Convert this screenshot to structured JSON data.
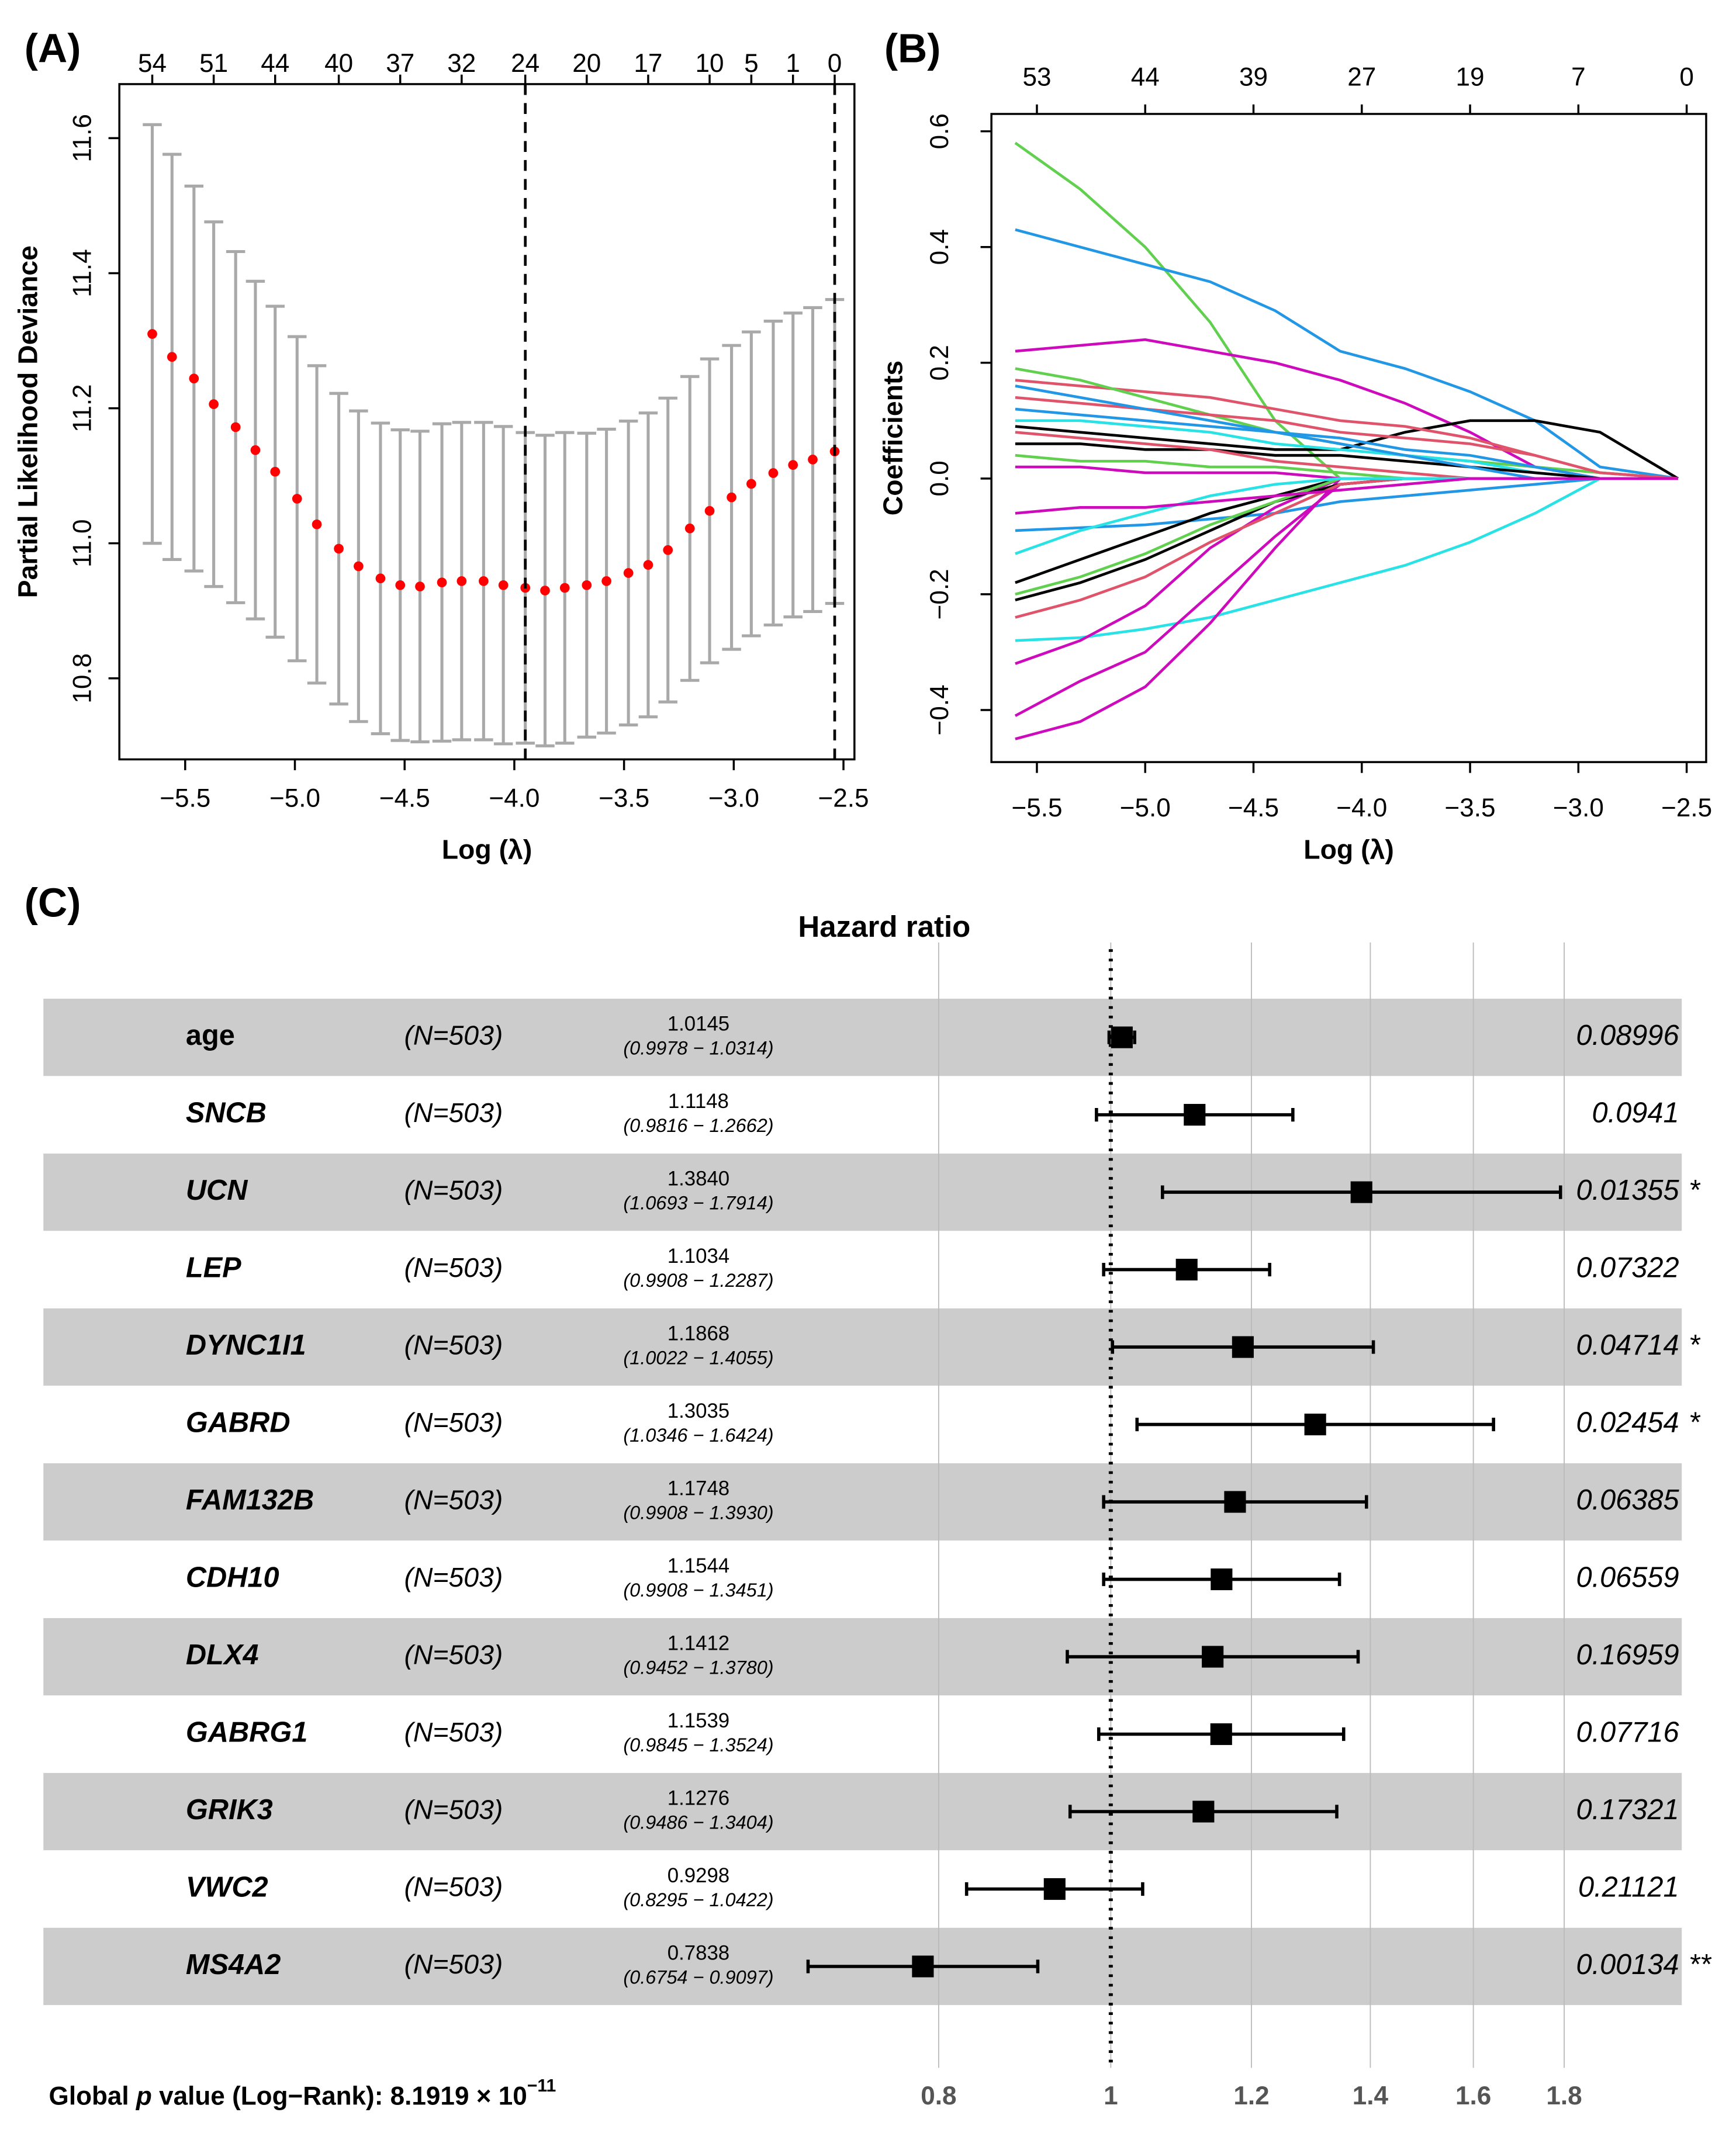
{
  "chart_data": [
    {
      "type": "errorbar",
      "panel_label": "(A)",
      "x_label": "Log (λ)",
      "y_label": "Partial Likelihood Deviance",
      "x": [
        -5.65,
        -5.56,
        -5.46,
        -5.37,
        -5.27,
        -5.18,
        -5.09,
        -4.99,
        -4.9,
        -4.8,
        -4.71,
        -4.61,
        -4.52,
        -4.43,
        -4.33,
        -4.24,
        -4.14,
        -4.05,
        -3.95,
        -3.86,
        -3.77,
        -3.67,
        -3.58,
        -3.48,
        -3.39,
        -3.3,
        -3.2,
        -3.11,
        -3.01,
        -2.92,
        -2.82,
        -2.73,
        -2.64,
        -2.54
      ],
      "values": [
        11.31,
        11.276,
        11.244,
        11.206,
        11.172,
        11.138,
        11.106,
        11.066,
        11.028,
        10.992,
        10.966,
        10.948,
        10.938,
        10.936,
        10.942,
        10.944,
        10.944,
        10.938,
        10.934,
        10.93,
        10.934,
        10.938,
        10.944,
        10.956,
        10.968,
        10.99,
        11.022,
        11.048,
        11.068,
        11.088,
        11.104,
        11.116,
        11.124,
        11.136
      ],
      "errors": [
        0.31,
        0.3,
        0.285,
        0.27,
        0.26,
        0.25,
        0.245,
        0.24,
        0.235,
        0.23,
        0.23,
        0.23,
        0.23,
        0.23,
        0.235,
        0.235,
        0.235,
        0.235,
        0.23,
        0.23,
        0.23,
        0.225,
        0.225,
        0.225,
        0.225,
        0.225,
        0.225,
        0.225,
        0.225,
        0.225,
        0.225,
        0.225,
        0.225,
        0.225
      ],
      "color": "#ff0000",
      "error_color": "#a9a9a9",
      "xlim": [
        -5.8,
        -2.45
      ],
      "ylim": [
        10.68,
        11.68
      ],
      "xticks": [
        {
          "value": -5.5,
          "label": "−5.5"
        },
        {
          "value": -5.0,
          "label": "−5.0"
        },
        {
          "value": -4.5,
          "label": "−4.5"
        },
        {
          "value": -4.0,
          "label": "−4.0"
        },
        {
          "value": -3.5,
          "label": "−3.5"
        },
        {
          "value": -3.0,
          "label": "−3.0"
        },
        {
          "value": -2.5,
          "label": "−2.5"
        }
      ],
      "yticks": [
        10.8,
        {
          "value": 11.0,
          "label": "11.0"
        },
        11.2,
        11.4,
        11.6
      ],
      "x2ticks": [
        {
          "value": -5.65,
          "label": "54"
        },
        {
          "value": -5.37,
          "label": "51"
        },
        {
          "value": -5.09,
          "label": "44"
        },
        {
          "value": -4.8,
          "label": "40"
        },
        {
          "value": -4.52,
          "label": "37"
        },
        {
          "value": -4.24,
          "label": "32"
        },
        {
          "value": -3.95,
          "label": "24"
        },
        {
          "value": -3.67,
          "label": "20"
        },
        {
          "value": -3.39,
          "label": "17"
        },
        {
          "value": -3.11,
          "label": "10"
        },
        {
          "value": -2.92,
          "label": "5"
        },
        {
          "value": -2.73,
          "label": "1"
        },
        {
          "value": -2.54,
          "label": "0"
        }
      ],
      "vlines": [
        -3.95,
        -2.54
      ]
    },
    {
      "type": "line",
      "panel_label": "(B)",
      "x_label": "Log (λ)",
      "y_label": "Coefficients",
      "x": [
        -5.6,
        -5.3,
        -5.0,
        -4.7,
        -4.4,
        -4.1,
        -3.8,
        -3.5,
        -3.2,
        -2.9,
        -2.54
      ],
      "series": [
        {
          "color": "#61D04F",
          "values": [
            0.58,
            0.5,
            0.4,
            0.27,
            0.1,
            0,
            0,
            0,
            0,
            0,
            0
          ]
        },
        {
          "color": "#2297E6",
          "values": [
            0.43,
            0.4,
            0.37,
            0.34,
            0.29,
            0.22,
            0.19,
            0.15,
            0.1,
            0.02,
            0
          ]
        },
        {
          "color": "#CD0BBC",
          "values": [
            0.22,
            0.23,
            0.24,
            0.22,
            0.2,
            0.17,
            0.13,
            0.08,
            0.02,
            0,
            0
          ]
        },
        {
          "color": "#000000",
          "values": [
            0.09,
            0.08,
            0.07,
            0.06,
            0.05,
            0.05,
            0.08,
            0.1,
            0.1,
            0.08,
            0
          ]
        },
        {
          "color": "#DF536B",
          "values": [
            0.17,
            0.16,
            0.15,
            0.14,
            0.12,
            0.1,
            0.09,
            0.07,
            0.04,
            0.01,
            0
          ]
        },
        {
          "color": "#61D04F",
          "values": [
            0.19,
            0.17,
            0.14,
            0.11,
            0.08,
            0.06,
            0.04,
            0.03,
            0.02,
            0.01,
            0
          ]
        },
        {
          "color": "#DF536B",
          "values": [
            0.14,
            0.13,
            0.12,
            0.11,
            0.1,
            0.08,
            0.07,
            0.06,
            0.04,
            0.01,
            0
          ]
        },
        {
          "color": "#2297E6",
          "values": [
            0.12,
            0.11,
            0.1,
            0.09,
            0.08,
            0.07,
            0.05,
            0.04,
            0.02,
            0,
            0
          ]
        },
        {
          "color": "#28E2E5",
          "values": [
            0.1,
            0.1,
            0.09,
            0.08,
            0.06,
            0.05,
            0.04,
            0.03,
            0.01,
            0,
            0
          ]
        },
        {
          "color": "#000000",
          "values": [
            0.06,
            0.06,
            0.05,
            0.05,
            0.04,
            0.04,
            0.03,
            0.02,
            0.01,
            0,
            0
          ]
        },
        {
          "color": "#61D04F",
          "values": [
            0.04,
            0.03,
            0.03,
            0.02,
            0.02,
            0.01,
            0,
            0,
            0,
            0,
            0
          ]
        },
        {
          "color": "#DF536B",
          "values": [
            0.08,
            0.07,
            0.06,
            0.05,
            0.03,
            0.02,
            0.01,
            0,
            0,
            0,
            0
          ]
        },
        {
          "color": "#CD0BBC",
          "values": [
            0.02,
            0.02,
            0.01,
            0.01,
            0.01,
            0,
            0,
            0,
            0,
            0,
            0
          ]
        },
        {
          "color": "#2297E6",
          "values": [
            0.16,
            0.14,
            0.12,
            0.1,
            0.08,
            0.06,
            0.04,
            0.02,
            0,
            0,
            0
          ]
        },
        {
          "color": "#2297E6",
          "values": [
            -0.09,
            -0.085,
            -0.08,
            -0.07,
            -0.06,
            -0.04,
            -0.03,
            -0.02,
            -0.01,
            0,
            0
          ]
        },
        {
          "color": "#28E2E5",
          "values": [
            -0.28,
            -0.275,
            -0.26,
            -0.24,
            -0.21,
            -0.18,
            -0.15,
            -0.11,
            -0.06,
            0,
            0
          ]
        },
        {
          "color": "#CD0BBC",
          "values": [
            -0.45,
            -0.42,
            -0.36,
            -0.25,
            -0.12,
            0,
            0,
            0,
            0,
            0,
            0
          ]
        },
        {
          "color": "#CD0BBC",
          "values": [
            -0.41,
            -0.35,
            -0.3,
            -0.2,
            -0.1,
            -0.01,
            0,
            0,
            0,
            0,
            0
          ]
        },
        {
          "color": "#CD0BBC",
          "values": [
            -0.32,
            -0.28,
            -0.22,
            -0.12,
            -0.05,
            0,
            0,
            0,
            0,
            0,
            0
          ]
        },
        {
          "color": "#000000",
          "values": [
            -0.18,
            -0.14,
            -0.1,
            -0.06,
            -0.03,
            0,
            0,
            0,
            0,
            0,
            0
          ]
        },
        {
          "color": "#000000",
          "values": [
            -0.21,
            -0.18,
            -0.14,
            -0.09,
            -0.04,
            -0.01,
            0,
            0,
            0,
            0,
            0
          ]
        },
        {
          "color": "#61D04F",
          "values": [
            -0.2,
            -0.17,
            -0.13,
            -0.08,
            -0.04,
            0,
            0,
            0,
            0,
            0,
            0
          ]
        },
        {
          "color": "#DF536B",
          "values": [
            -0.24,
            -0.21,
            -0.17,
            -0.11,
            -0.06,
            -0.01,
            0,
            0,
            0,
            0,
            0
          ]
        },
        {
          "color": "#28E2E5",
          "values": [
            -0.13,
            -0.09,
            -0.06,
            -0.03,
            -0.01,
            0,
            0,
            0,
            0,
            0,
            0
          ]
        },
        {
          "color": "#CD0BBC",
          "values": [
            -0.06,
            -0.05,
            -0.05,
            -0.04,
            -0.03,
            -0.02,
            -0.01,
            0,
            0,
            0,
            0
          ]
        }
      ],
      "xlim": [
        -5.71,
        -2.41
      ],
      "ylim": [
        -0.49,
        0.63
      ],
      "xticks": [
        {
          "value": -5.5,
          "label": "−5.5"
        },
        {
          "value": -5.0,
          "label": "−5.0"
        },
        {
          "value": -4.5,
          "label": "−4.5"
        },
        {
          "value": -4.0,
          "label": "−4.0"
        },
        {
          "value": -3.5,
          "label": "−3.5"
        },
        {
          "value": -3.0,
          "label": "−3.0"
        },
        {
          "value": -2.5,
          "label": "−2.5"
        }
      ],
      "yticks": [
        {
          "value": -0.4,
          "label": "−0.4"
        },
        {
          "value": -0.2,
          "label": "−0.2"
        },
        {
          "value": 0,
          "label": "0.0"
        },
        0.2,
        0.4,
        0.6
      ],
      "x2ticks": [
        {
          "value": -5.5,
          "label": "53"
        },
        {
          "value": -5.0,
          "label": "44"
        },
        {
          "value": -4.5,
          "label": "39"
        },
        {
          "value": -4.0,
          "label": "27"
        },
        {
          "value": -3.5,
          "label": "19"
        },
        {
          "value": -3.0,
          "label": "7"
        },
        {
          "value": -2.5,
          "label": "0"
        }
      ]
    },
    {
      "type": "forest",
      "panel_label": "(C)",
      "title": "Hazard ratio",
      "categories": [
        "age",
        "SNCB",
        "UCN",
        "LEP",
        "DYNC1I1",
        "GABRD",
        "FAM132B",
        "CDH10",
        "DLX4",
        "GABRG1",
        "GRIK3",
        "VWC2",
        "MS4A2"
      ],
      "n_labels": [
        "(N=503)",
        "(N=503)",
        "(N=503)",
        "(N=503)",
        "(N=503)",
        "(N=503)",
        "(N=503)",
        "(N=503)",
        "(N=503)",
        "(N=503)",
        "(N=503)",
        "(N=503)",
        "(N=503)"
      ],
      "values": [
        1.0145,
        1.1148,
        1.384,
        1.1034,
        1.1868,
        1.3035,
        1.1748,
        1.1544,
        1.1412,
        1.1539,
        1.1276,
        0.9298,
        0.7838
      ],
      "value_labels": [
        "1.0145",
        "1.1148",
        "1.3840",
        "1.1034",
        "1.1868",
        "1.3035",
        "1.1748",
        "1.1544",
        "1.1412",
        "1.1539",
        "1.1276",
        "0.9298",
        "0.7838"
      ],
      "lower": [
        0.9978,
        0.9816,
        1.0693,
        0.9908,
        1.0022,
        1.0346,
        0.9908,
        0.9908,
        0.9452,
        0.9845,
        0.9486,
        0.8295,
        0.6754
      ],
      "upper": [
        1.0314,
        1.2662,
        1.7914,
        1.2287,
        1.4055,
        1.6424,
        1.393,
        1.3451,
        1.378,
        1.3524,
        1.3404,
        1.0422,
        0.9097
      ],
      "ci_labels": [
        "(0.9978 − 1.0314)",
        "(0.9816 − 1.2662)",
        "(1.0693 − 1.7914)",
        "(0.9908 − 1.2287)",
        "(1.0022 − 1.4055)",
        "(1.0346 − 1.6424)",
        "(0.9908 − 1.3930)",
        "(0.9908 − 1.3451)",
        "(0.9452 − 1.3780)",
        "(0.9845 − 1.3524)",
        "(0.9486 − 1.3404)",
        "(0.8295 − 1.0422)",
        "(0.6754 − 0.9097)"
      ],
      "p_values": [
        0.08996,
        0.0941,
        0.01355,
        0.07322,
        0.04714,
        0.02454,
        0.06385,
        0.06559,
        0.16959,
        0.07716,
        0.17321,
        0.21121,
        0.00134
      ],
      "stars": [
        null,
        null,
        "*",
        null,
        "*",
        "*",
        null,
        null,
        null,
        null,
        null,
        null,
        "**"
      ],
      "xlim": [
        0.65,
        2.1
      ],
      "log_x": true,
      "xticks": [
        0.8,
        1,
        1.2,
        1.4,
        1.6,
        1.8
      ],
      "ref_line": 1,
      "grid": true,
      "footnote": [
        "Global ",
        "p",
        " value (Log−Rank): 8.1919 × 10",
        "−11"
      ]
    }
  ]
}
